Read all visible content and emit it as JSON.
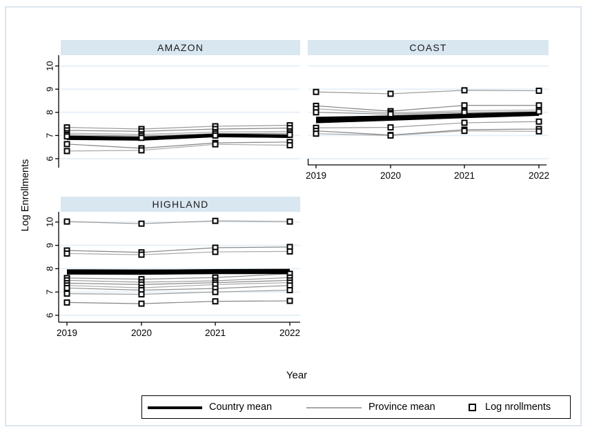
{
  "figure": {
    "y_axis_title": "Log Enrollments",
    "x_axis_title": "Year"
  },
  "legend": {
    "items": [
      {
        "label": "Country mean",
        "swatch": "thick-black-line"
      },
      {
        "label": "Province mean",
        "swatch": "thin-gray-line"
      },
      {
        "label": "Log nrollments",
        "swatch": "hollow-square-marker"
      }
    ]
  },
  "colors": {
    "panel_header_fill": "#d9e7f1",
    "gridline": "#e8f0f7",
    "outer_border": "#dbe5ee",
    "axis": "#000000",
    "country_mean_line": "#000000",
    "province_mean_shades": [
      "#999999",
      "#858585",
      "#a9a9a9",
      "#8f8f8f"
    ],
    "marker_stroke": "#000000",
    "marker_fill": "#ffffff"
  },
  "chart_data": [
    {
      "panel": "AMAZON",
      "type": "line",
      "x": [
        2019,
        2020,
        2021,
        2022
      ],
      "y_ticks": [
        6,
        7,
        8,
        9,
        10
      ],
      "ylim": [
        5.7,
        10.5
      ],
      "grid": true,
      "x_axis_shown": false,
      "y_axis_shown": true,
      "series": [
        {
          "values": [
            7.35,
            7.28,
            7.4,
            7.44
          ]
        },
        {
          "values": [
            7.22,
            7.18,
            7.28,
            7.32
          ]
        },
        {
          "values": [
            7.1,
            7.05,
            7.15,
            7.18
          ]
        },
        {
          "values": [
            7.03,
            6.98,
            7.08,
            7.1
          ]
        },
        {
          "values": [
            6.96,
            6.9,
            7.0,
            7.03
          ]
        },
        {
          "values": [
            6.63,
            6.45,
            6.68,
            6.72
          ]
        },
        {
          "values": [
            6.33,
            6.36,
            6.62,
            6.58
          ]
        }
      ],
      "mean_lines": [
        {
          "values": [
            6.9,
            6.86,
            7.01,
            6.97
          ],
          "width": 5
        },
        {
          "values": [
            6.97,
            6.93,
            7.05,
            7.02
          ],
          "width": 1.5
        },
        {
          "values": [
            6.83,
            6.8,
            6.95,
            6.92
          ],
          "width": 1.5
        }
      ]
    },
    {
      "panel": "COAST",
      "type": "line",
      "x": [
        2019,
        2020,
        2021,
        2022
      ],
      "y_ticks": [
        6,
        7,
        8,
        9,
        10
      ],
      "ylim": [
        5.7,
        10.5
      ],
      "grid": true,
      "x_axis_shown": true,
      "y_axis_shown": false,
      "series": [
        {
          "values": [
            8.88,
            8.8,
            8.95,
            8.93
          ]
        },
        {
          "values": [
            8.28,
            8.05,
            8.3,
            8.3
          ]
        },
        {
          "values": [
            8.15,
            7.97,
            8.07,
            8.1
          ]
        },
        {
          "values": [
            8.0,
            7.92,
            8.0,
            8.03
          ]
        },
        {
          "values": [
            7.33,
            7.35,
            7.55,
            7.6
          ]
        },
        {
          "values": [
            7.2,
            7.02,
            7.25,
            7.28
          ]
        },
        {
          "values": [
            7.08,
            7.0,
            7.2,
            7.18
          ]
        }
      ],
      "mean_lines": [
        {
          "values": [
            7.7,
            7.78,
            7.87,
            7.94
          ],
          "width": 6
        },
        {
          "values": [
            7.78,
            7.83,
            7.9,
            7.97
          ],
          "width": 2
        },
        {
          "values": [
            7.6,
            7.7,
            7.8,
            7.9
          ],
          "width": 2
        },
        {
          "values": [
            7.55,
            7.66,
            7.77,
            7.87
          ],
          "width": 1.5
        }
      ]
    },
    {
      "panel": "HIGHLAND",
      "type": "line",
      "x": [
        2019,
        2020,
        2021,
        2022
      ],
      "y_ticks": [
        6,
        7,
        8,
        9,
        10
      ],
      "ylim": [
        5.7,
        10.5
      ],
      "grid": true,
      "x_axis_shown": true,
      "y_axis_shown": true,
      "series": [
        {
          "values": [
            10.02,
            9.93,
            10.05,
            10.02
          ]
        },
        {
          "values": [
            8.78,
            8.7,
            8.9,
            8.93
          ]
        },
        {
          "values": [
            8.65,
            8.6,
            8.72,
            8.74
          ]
        },
        {
          "values": [
            7.6,
            7.55,
            7.62,
            7.78
          ]
        },
        {
          "values": [
            7.5,
            7.42,
            7.48,
            7.62
          ]
        },
        {
          "values": [
            7.38,
            7.32,
            7.4,
            7.5
          ]
        },
        {
          "values": [
            7.28,
            7.18,
            7.32,
            7.4
          ]
        },
        {
          "values": [
            7.17,
            7.08,
            7.15,
            7.28
          ]
        },
        {
          "values": [
            6.93,
            6.9,
            7.0,
            7.08
          ]
        },
        {
          "values": [
            6.55,
            6.5,
            6.6,
            6.62
          ]
        }
      ],
      "mean_lines": [
        {
          "values": [
            7.86,
            7.85,
            7.88,
            7.89
          ],
          "width": 7
        },
        {
          "values": [
            7.95,
            7.94,
            7.95,
            7.95
          ],
          "width": 1.5
        },
        {
          "values": [
            7.77,
            7.76,
            7.79,
            7.79
          ],
          "width": 1.5
        }
      ]
    }
  ]
}
